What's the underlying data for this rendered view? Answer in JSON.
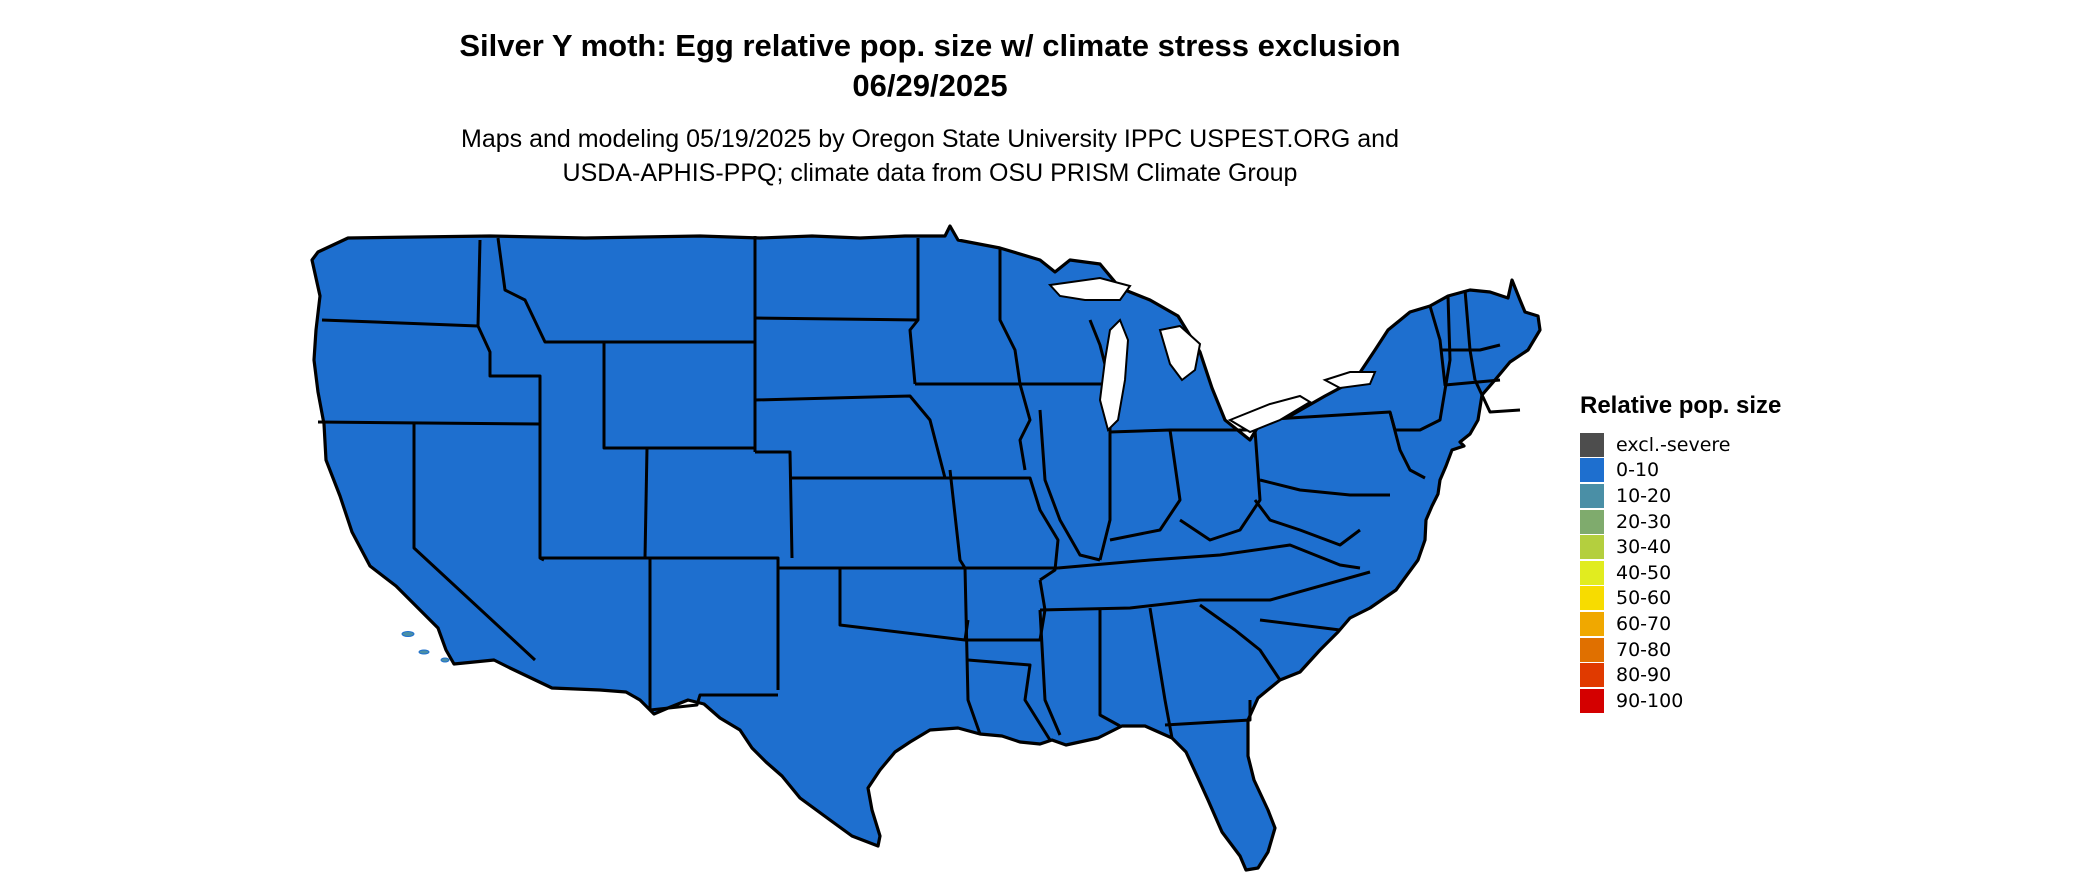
{
  "title": {
    "line1": "Silver Y moth: Egg relative pop. size w/ climate stress exclusion",
    "line2": "06/29/2025"
  },
  "subtitle": {
    "line1": "Maps and modeling 05/19/2025 by Oregon State University IPPC USPEST.ORG and",
    "line2": "USDA-APHIS-PPQ; climate data from OSU PRISM Climate Group"
  },
  "map": {
    "region": "Contiguous United States",
    "colors": {
      "ocean": "#ffffff",
      "land_base": "#1e6fcf",
      "mid_zone": "#4a8fa6",
      "high_zone": "#b4cf3e",
      "borders": "#000000"
    }
  },
  "legend": {
    "title": "Relative pop. size",
    "items": [
      {
        "label": "excl.-severe",
        "color": "#4d4d4d"
      },
      {
        "label": "0-10",
        "color": "#1e6fcf"
      },
      {
        "label": "10-20",
        "color": "#4a8fa6"
      },
      {
        "label": "20-30",
        "color": "#7fab6d"
      },
      {
        "label": "30-40",
        "color": "#b4cf3e"
      },
      {
        "label": "40-50",
        "color": "#e1ec1f"
      },
      {
        "label": "50-60",
        "color": "#f7dc00"
      },
      {
        "label": "60-70",
        "color": "#f0a800"
      },
      {
        "label": "70-80",
        "color": "#e07000"
      },
      {
        "label": "80-90",
        "color": "#e03a00"
      },
      {
        "label": "90-100",
        "color": "#d40000"
      }
    ]
  }
}
